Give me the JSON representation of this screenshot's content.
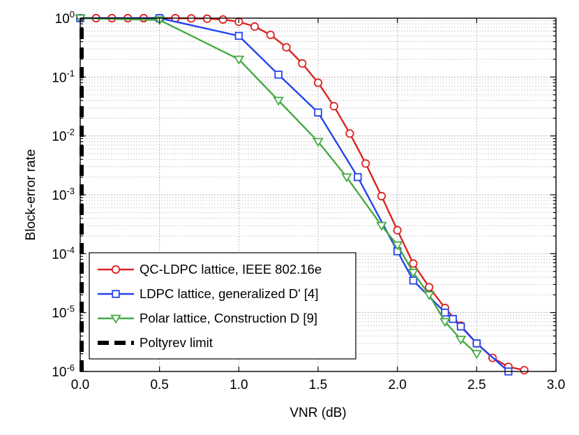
{
  "chart_data": {
    "type": "line",
    "title": "",
    "xlabel": "VNR (dB)",
    "ylabel": "Block-error rate",
    "xlim": [
      0,
      3
    ],
    "ylim": [
      1e-06,
      1
    ],
    "yscale": "log",
    "grid": true,
    "legend_position": "bottom-left",
    "x_ticks": [
      0,
      0.5,
      1,
      1.5,
      2,
      2.5,
      3
    ],
    "x_tick_labels": [
      "0.0",
      "0.5",
      "1.0",
      "1.5",
      "2.0",
      "2.5",
      "3.0"
    ],
    "y_tick_exponents": [
      "0",
      "-1",
      "-2",
      "-3",
      "-4",
      "-5",
      "-6"
    ],
    "y_tick_base": "10",
    "series": [
      {
        "name": "QC-LDPC lattice, IEEE 802.16e",
        "color": "#dd2222",
        "marker": "circle",
        "x": [
          0,
          0.1,
          0.2,
          0.3,
          0.4,
          0.5,
          0.6,
          0.7,
          0.8,
          0.9,
          1.0,
          1.1,
          1.2,
          1.3,
          1.4,
          1.5,
          1.6,
          1.7,
          1.8,
          1.9,
          2.0,
          2.1,
          2.2,
          2.3,
          2.4,
          2.5,
          2.6,
          2.7,
          2.8
        ],
        "y": [
          1.0,
          1.0,
          1.0,
          1.0,
          1.0,
          1.0,
          1.0,
          0.99,
          0.98,
          0.95,
          0.87,
          0.72,
          0.52,
          0.32,
          0.17,
          0.08,
          0.032,
          0.011,
          0.0034,
          0.00095,
          0.00025,
          6.8e-05,
          2.7e-05,
          1.2e-05,
          6e-06,
          3e-06,
          1.7e-06,
          1.2e-06,
          1.05e-06
        ]
      },
      {
        "name": "LDPC lattice, generalized D' [4]",
        "color": "#2244ee",
        "marker": "square",
        "x": [
          0,
          0.5,
          1.0,
          1.25,
          1.5,
          1.75,
          2.0,
          2.1,
          2.3,
          2.35,
          2.4,
          2.5,
          2.7
        ],
        "y": [
          1.0,
          1.0,
          0.5,
          0.11,
          0.025,
          0.002,
          0.00011,
          3.5e-05,
          1e-05,
          7.8e-06,
          5.8e-06,
          3e-06,
          1e-06
        ]
      },
      {
        "name": "Polar lattice, Construction D [9]",
        "color": "#44aa44",
        "marker": "triangle-down",
        "x": [
          0,
          0.5,
          1.0,
          1.25,
          1.5,
          1.68,
          1.9,
          2.0,
          2.1,
          2.2,
          2.3,
          2.4,
          2.5
        ],
        "y": [
          1.0,
          0.93,
          0.2,
          0.04,
          0.008,
          0.002,
          0.0003,
          0.00014,
          4.8e-05,
          2e-05,
          7e-06,
          3.5e-06,
          2e-06
        ]
      },
      {
        "name": "Poltyrev limit",
        "color": "#000000",
        "marker": "none",
        "dashed": true,
        "x": [
          0,
          0
        ],
        "y": [
          1e-06,
          1
        ]
      }
    ]
  }
}
